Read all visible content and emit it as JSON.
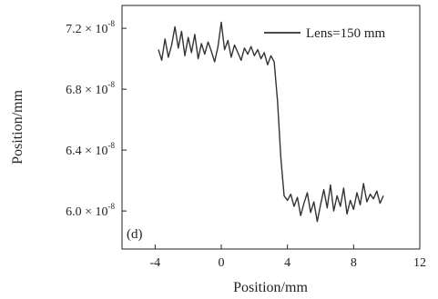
{
  "chart_data": {
    "type": "line",
    "title": "",
    "xlabel": "Position/mm",
    "ylabel": "Position/mm",
    "xlim": [
      -6,
      12
    ],
    "ylim": [
      5.75e-08,
      7.35e-08
    ],
    "x_ticks": [
      -4,
      0,
      4,
      8,
      12
    ],
    "x_tick_labels": [
      "-4",
      "0",
      "4",
      "8",
      "12"
    ],
    "y_ticks": [
      6e-08,
      6.4e-08,
      6.8e-08,
      7.2e-08
    ],
    "y_tick_labels": [
      {
        "mantissa": "6.0",
        "base": "× 10",
        "exp": "-8"
      },
      {
        "mantissa": "6.4",
        "base": "× 10",
        "exp": "-8"
      },
      {
        "mantissa": "6.8",
        "base": "× 10",
        "exp": "-8"
      },
      {
        "mantissa": "7.2",
        "base": "× 10",
        "exp": "-8"
      }
    ],
    "grid": false,
    "legend_position": "top-right",
    "annotation": "(d)",
    "series": [
      {
        "name": "Lens=150 mm",
        "color": "#333333",
        "x": [
          -3.8,
          -3.6,
          -3.4,
          -3.2,
          -3.0,
          -2.8,
          -2.6,
          -2.4,
          -2.2,
          -2.0,
          -1.8,
          -1.6,
          -1.4,
          -1.2,
          -1.0,
          -0.8,
          -0.6,
          -0.4,
          -0.2,
          0.0,
          0.2,
          0.4,
          0.6,
          0.8,
          1.0,
          1.2,
          1.4,
          1.6,
          1.8,
          2.0,
          2.2,
          2.4,
          2.6,
          2.8,
          3.0,
          3.2,
          3.4,
          3.6,
          3.8,
          4.0,
          4.2,
          4.4,
          4.6,
          4.8,
          5.0,
          5.2,
          5.4,
          5.6,
          5.8,
          6.0,
          6.2,
          6.4,
          6.6,
          6.8,
          7.0,
          7.2,
          7.4,
          7.6,
          7.8,
          8.0,
          8.2,
          8.4,
          8.6,
          8.8,
          9.0,
          9.2,
          9.4,
          9.6,
          9.8
        ],
        "y": [
          7.06e-08,
          6.99e-08,
          7.13e-08,
          7.01e-08,
          7.09e-08,
          7.21e-08,
          7.07e-08,
          7.18e-08,
          7.02e-08,
          7.14e-08,
          7.04e-08,
          7.16e-08,
          7e-08,
          7.1e-08,
          7.03e-08,
          7.11e-08,
          7.05e-08,
          6.98e-08,
          7.08e-08,
          7.24e-08,
          7.06e-08,
          7.12e-08,
          7.01e-08,
          7.09e-08,
          7.04e-08,
          6.99e-08,
          7.07e-08,
          7.03e-08,
          7.08e-08,
          7.02e-08,
          7.06e-08,
          7e-08,
          7.04e-08,
          6.96e-08,
          7.02e-08,
          6.98e-08,
          6.72e-08,
          6.35e-08,
          6.1e-08,
          6.07e-08,
          6.11e-08,
          6.03e-08,
          6.09e-08,
          5.97e-08,
          6.05e-08,
          6.12e-08,
          5.99e-08,
          6.06e-08,
          5.93e-08,
          6.04e-08,
          6.14e-08,
          6.02e-08,
          6.17e-08,
          6e-08,
          6.1e-08,
          6.03e-08,
          6.15e-08,
          5.98e-08,
          6.07e-08,
          6.01e-08,
          6.12e-08,
          6.04e-08,
          6.18e-08,
          6.06e-08,
          6.11e-08,
          6.08e-08,
          6.13e-08,
          6.05e-08,
          6.1e-08
        ]
      }
    ]
  }
}
